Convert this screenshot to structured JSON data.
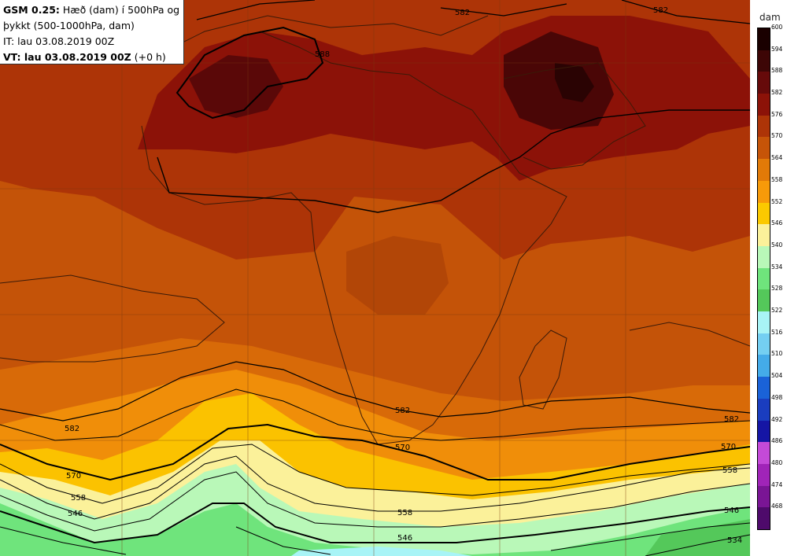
{
  "header": {
    "model": "GSM 0.25:",
    "desc1": "Hæð (dam) í 500hPa og",
    "desc2": "þykkt (500-1000hPa, dam)",
    "it": "IT: lau 03.08.2019 00Z",
    "vt": "VT: lau 03.08.2019 00Z",
    "vt_offset": "(+0 h)"
  },
  "legend": {
    "unit": "dam",
    "ticks": [
      "600",
      "594",
      "588",
      "582",
      "576",
      "570",
      "564",
      "558",
      "552",
      "546",
      "540",
      "534",
      "528",
      "522",
      "516",
      "510",
      "504",
      "498",
      "492",
      "486",
      "480",
      "474",
      "468"
    ],
    "colors": [
      "#1a0000",
      "#3d0606",
      "#660a0a",
      "#8c1208",
      "#ad3407",
      "#c65408",
      "#e27a08",
      "#f79a09",
      "#fbc900",
      "#fbf19a",
      "#b9f8b8",
      "#6fe47c",
      "#54c85a",
      "#a8f4f6",
      "#74cff2",
      "#44abe9",
      "#1a62d8",
      "#1a3dbf",
      "#1515a4",
      "#c44ad8",
      "#a024b8",
      "#7a1595",
      "#4e0a6b"
    ]
  },
  "contour_labels": {
    "n582a": "582",
    "n582b": "582",
    "n588": "588",
    "s582a": "582",
    "s582b": "582",
    "s582c": "582",
    "s570a": "570",
    "s570b": "570",
    "s570c": "570",
    "s558a": "558",
    "s558b": "558",
    "s558c": "558",
    "s546a": "546",
    "s546b": "546",
    "s546c": "546",
    "s534": "534"
  }
}
